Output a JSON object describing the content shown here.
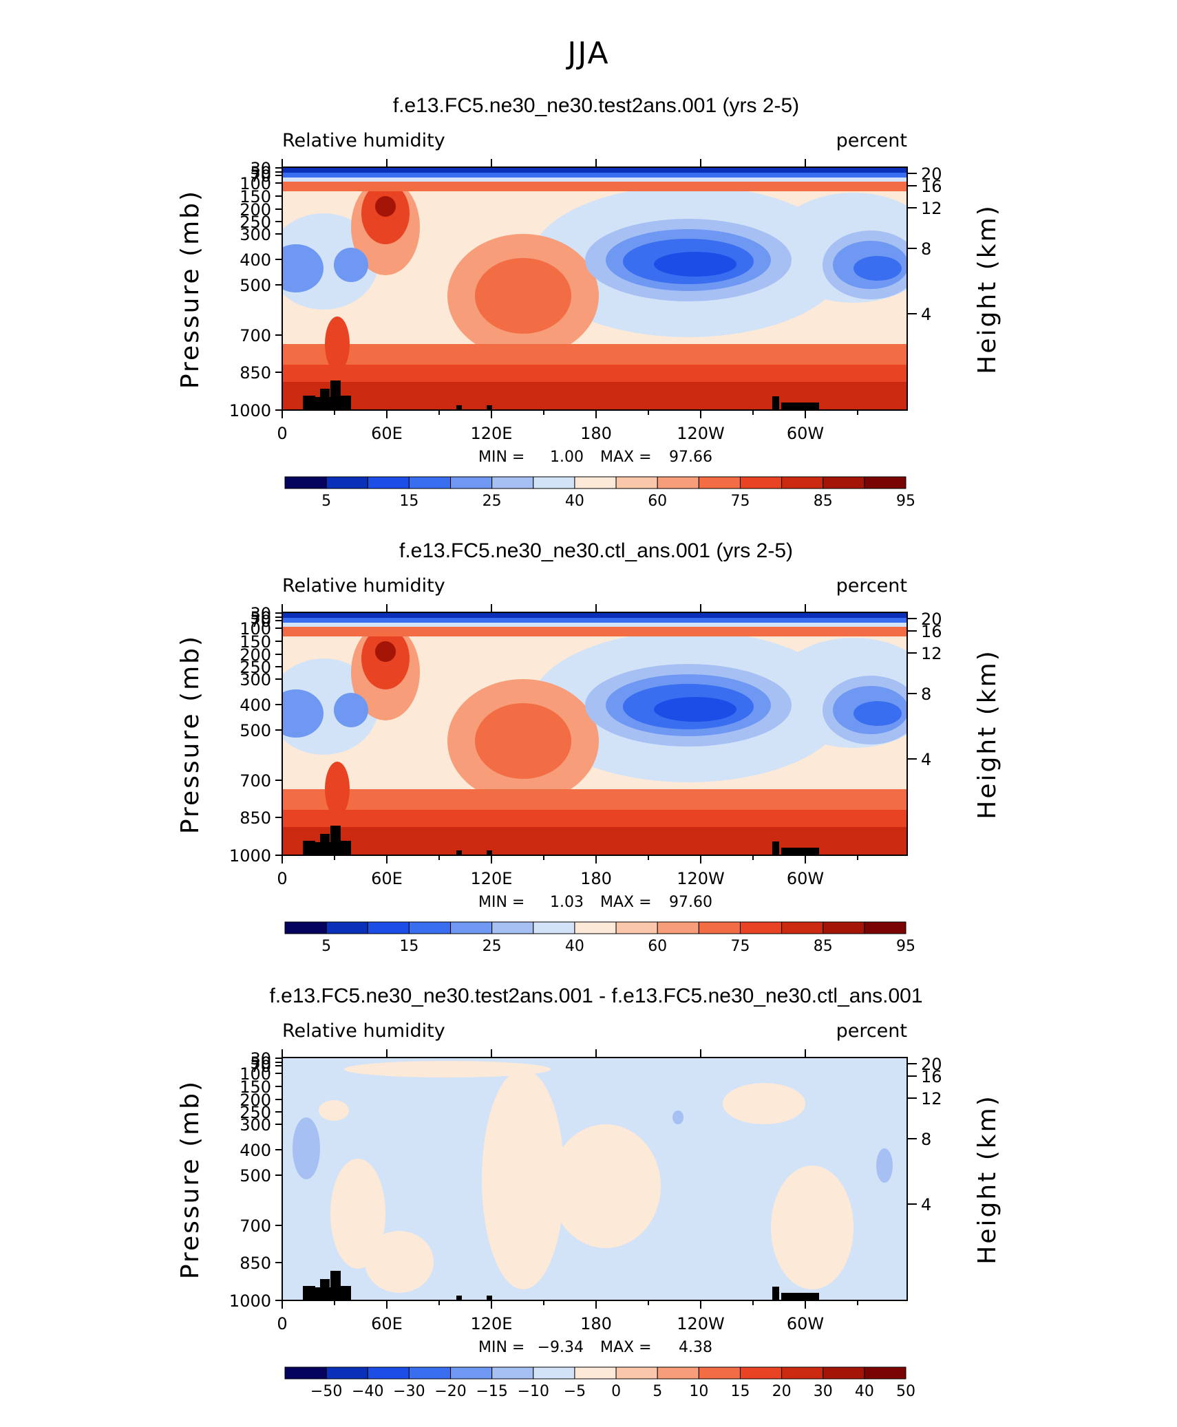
{
  "figure": {
    "title": "JJA"
  },
  "chart_data": [
    {
      "type": "heatmap",
      "title": "f.e13.FC5.ne30_ne30.test2ans.001 (yrs 2-5)",
      "left_label": "Relative humidity",
      "right_label": "percent",
      "ylabel": "Pressure (mb)",
      "ylabel_right": "Height (km)",
      "y_ticks": [
        "30",
        "50",
        "70",
        "100",
        "150",
        "200",
        "250",
        "300",
        "400",
        "500",
        "700",
        "850",
        "1000"
      ],
      "y_right_ticks": [
        "20",
        "16",
        "12",
        "8",
        "4"
      ],
      "x_ticks": [
        "0",
        "60E",
        "120E",
        "180",
        "120W",
        "60W"
      ],
      "min_label": "MIN =",
      "min_value": "1.00",
      "max_label": "MAX =",
      "max_value": "97.66",
      "levels": [
        "5",
        "15",
        "25",
        "40",
        "60",
        "75",
        "85",
        "95"
      ],
      "colors": [
        "#04045f",
        "#0a2fb9",
        "#1c4de6",
        "#3a6ef0",
        "#6f98f2",
        "#a7c0f4",
        "#d2e3f8",
        "#fde9d8",
        "#fac7ab",
        "#f79d79",
        "#f26d44",
        "#e84322",
        "#cb2a10",
        "#a41508",
        "#7a0404"
      ]
    },
    {
      "type": "heatmap",
      "title": "f.e13.FC5.ne30_ne30.ctl_ans.001 (yrs 2-5)",
      "left_label": "Relative humidity",
      "right_label": "percent",
      "ylabel": "Pressure (mb)",
      "ylabel_right": "Height (km)",
      "y_ticks": [
        "30",
        "50",
        "70",
        "100",
        "150",
        "200",
        "250",
        "300",
        "400",
        "500",
        "700",
        "850",
        "1000"
      ],
      "y_right_ticks": [
        "20",
        "16",
        "12",
        "8",
        "4"
      ],
      "x_ticks": [
        "0",
        "60E",
        "120E",
        "180",
        "120W",
        "60W"
      ],
      "min_label": "MIN =",
      "min_value": "1.03",
      "max_label": "MAX =",
      "max_value": "97.60",
      "levels": [
        "5",
        "15",
        "25",
        "40",
        "60",
        "75",
        "85",
        "95"
      ],
      "colors": [
        "#04045f",
        "#0a2fb9",
        "#1c4de6",
        "#3a6ef0",
        "#6f98f2",
        "#a7c0f4",
        "#d2e3f8",
        "#fde9d8",
        "#fac7ab",
        "#f79d79",
        "#f26d44",
        "#e84322",
        "#cb2a10",
        "#a41508",
        "#7a0404"
      ]
    },
    {
      "type": "heatmap",
      "title": "f.e13.FC5.ne30_ne30.test2ans.001 - f.e13.FC5.ne30_ne30.ctl_ans.001",
      "left_label": "Relative humidity",
      "right_label": "percent",
      "ylabel": "Pressure (mb)",
      "ylabel_right": "Height (km)",
      "y_ticks": [
        "30",
        "50",
        "70",
        "100",
        "150",
        "200",
        "250",
        "300",
        "400",
        "500",
        "700",
        "850",
        "1000"
      ],
      "y_right_ticks": [
        "20",
        "16",
        "12",
        "8",
        "4"
      ],
      "x_ticks": [
        "0",
        "60E",
        "120E",
        "180",
        "120W",
        "60W"
      ],
      "min_label": "MIN =",
      "min_value": "−9.34",
      "max_label": "MAX =",
      "max_value": "4.38",
      "levels": [
        "−50",
        "−40",
        "−30",
        "−20",
        "−15",
        "−10",
        "−5",
        "0",
        "5",
        "10",
        "15",
        "20",
        "30",
        "40",
        "50"
      ],
      "colors": [
        "#04045f",
        "#0a2fb9",
        "#1c4de6",
        "#3a6ef0",
        "#6f98f2",
        "#a7c0f4",
        "#d2e3f8",
        "#fde9d8",
        "#fac7ab",
        "#f79d79",
        "#f26d44",
        "#e84322",
        "#cb2a10",
        "#a41508",
        "#7a0404"
      ]
    }
  ]
}
